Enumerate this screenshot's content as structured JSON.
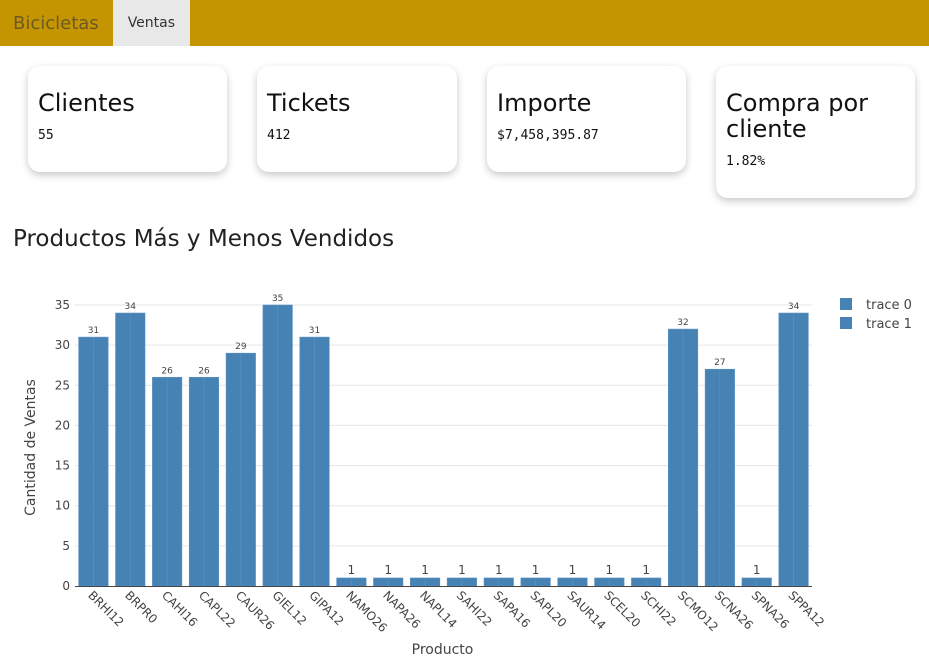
{
  "navbar": {
    "brand": "Bicicletas",
    "tabs": [
      {
        "label": "Ventas"
      }
    ]
  },
  "kpis": [
    {
      "title": "Clientes",
      "value": "55"
    },
    {
      "title": "Tickets",
      "value": "412"
    },
    {
      "title": "Importe",
      "value": "$7,458,395.87"
    },
    {
      "title": "Compra por cliente",
      "value": "1.82%"
    }
  ],
  "section": {
    "title": "Productos Más y Menos Vendidos"
  },
  "colors": {
    "navbar": "#c49500",
    "bar": "#4682b4"
  },
  "chart_data": {
    "type": "bar",
    "xlabel": "Producto",
    "ylabel": "Cantidad de Ventas",
    "ylim": [
      0,
      35
    ],
    "yticks": [
      0,
      5,
      10,
      15,
      20,
      25,
      30,
      35
    ],
    "grid": true,
    "legend_position": "top-right",
    "categories": [
      "BRHI12",
      "BRPR0",
      "CAHI16",
      "CAPL22",
      "CAUR26",
      "GIEL12",
      "GIPA12",
      "NAMO26",
      "NAPA26",
      "NAPL14",
      "SAHI22",
      "SAPA16",
      "SAPL20",
      "SAUR14",
      "SCEL20",
      "SCHI22",
      "SCMO12",
      "SCNA26",
      "SPNA26",
      "SPPA12"
    ],
    "series": [
      {
        "name": "trace 0",
        "color": "#4682b4",
        "values": [
          31,
          34,
          26,
          26,
          29,
          35,
          31,
          null,
          null,
          null,
          null,
          null,
          null,
          null,
          null,
          null,
          32,
          27,
          null,
          34
        ]
      },
      {
        "name": "trace 1",
        "color": "#4682b4",
        "values": [
          null,
          null,
          null,
          null,
          null,
          null,
          null,
          1,
          1,
          1,
          1,
          1,
          1,
          1,
          1,
          1,
          null,
          null,
          1,
          null
        ]
      }
    ]
  }
}
